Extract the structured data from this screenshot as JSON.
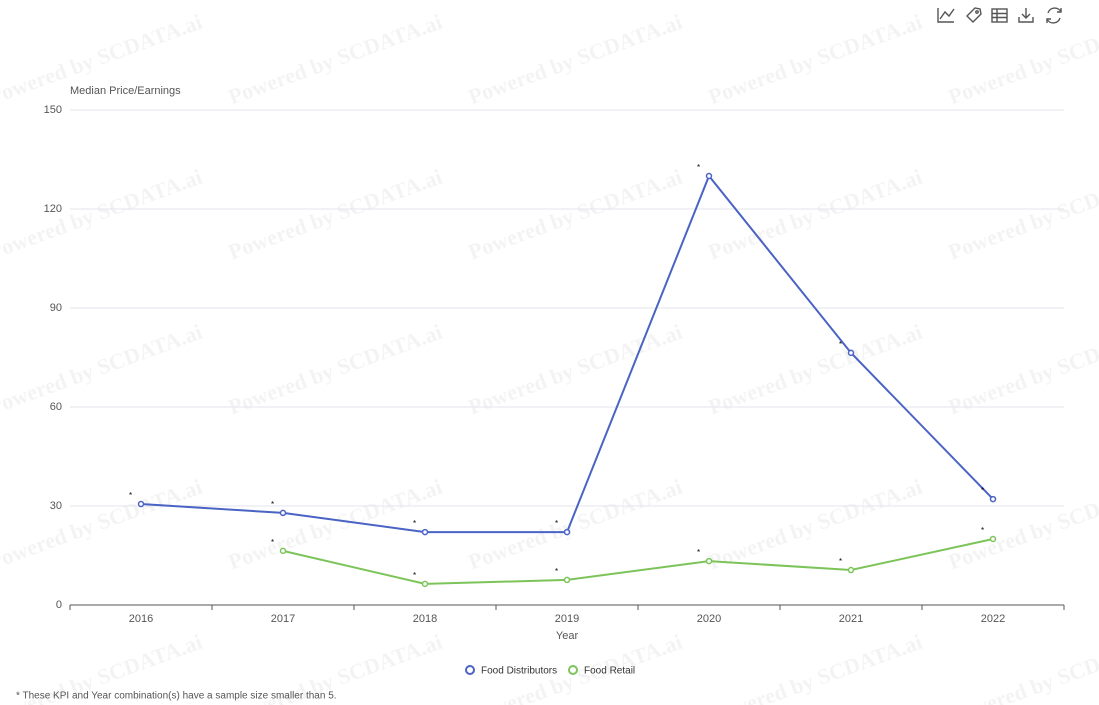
{
  "chart_data": {
    "type": "line",
    "y_axis_title": "Median Price/Earnings",
    "x_axis_title": "Year",
    "categories": [
      "2016",
      "2017",
      "2018",
      "2019",
      "2020",
      "2021",
      "2022"
    ],
    "series": [
      {
        "name": "Food Distributors",
        "color": "#4a63c4",
        "values": [
          30.6,
          27.9,
          22.1,
          22.1,
          130,
          76.4,
          32.1
        ]
      },
      {
        "name": "Food Retail",
        "color": "#7cc45a",
        "values": [
          null,
          16.4,
          6.4,
          7.6,
          13.3,
          10.6,
          20
        ]
      }
    ],
    "ylim": [
      0,
      150
    ],
    "yticks": [
      0,
      30,
      60,
      90,
      120,
      150
    ],
    "grid": true,
    "point_note_marker": "*",
    "footnote": "* These KPI and Year combination(s) have a sample size smaller than 5.",
    "watermark": "Powered by SCDATA.ai"
  }
}
